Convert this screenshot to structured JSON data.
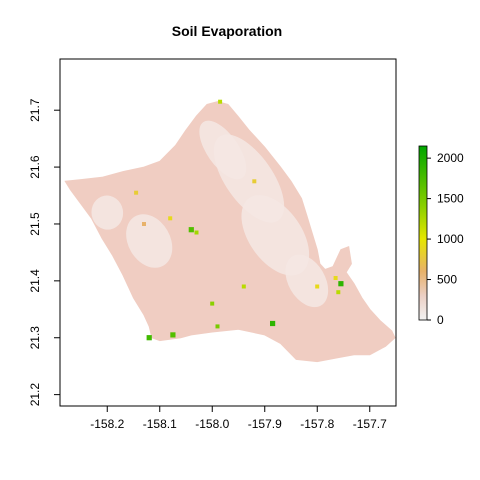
{
  "chart_data": {
    "type": "heatmap",
    "title": "Soil Evaporation",
    "xlabel": "",
    "ylabel": "",
    "xlim": [
      -158.29,
      -157.65
    ],
    "ylim": [
      21.18,
      21.79
    ],
    "x_ticks": [
      -158.2,
      -158.1,
      -158.0,
      -157.9,
      -157.8,
      -157.7
    ],
    "x_tick_labels": [
      "-158.2",
      "-158.1",
      "-158.0",
      "-157.9",
      "-157.8",
      "-157.7"
    ],
    "y_ticks": [
      21.2,
      21.3,
      21.4,
      21.5,
      21.6,
      21.7
    ],
    "y_tick_labels": [
      "21.2",
      "21.3",
      "21.4",
      "21.5",
      "21.6",
      "21.7"
    ],
    "legend": {
      "placement": "right",
      "min": 0,
      "max": 2150,
      "ticks": [
        0,
        500,
        1000,
        1500,
        2000
      ],
      "tick_labels": [
        "0",
        "500",
        "1000",
        "1500",
        "2000"
      ],
      "color_stops": [
        {
          "value": 0,
          "color": "#f2f2f2"
        },
        {
          "value": 300,
          "color": "#ebcfc4"
        },
        {
          "value": 600,
          "color": "#e8b26a"
        },
        {
          "value": 1000,
          "color": "#e6e600"
        },
        {
          "value": 1400,
          "color": "#8bd000"
        },
        {
          "value": 2150,
          "color": "#00a600"
        }
      ]
    },
    "region": {
      "name": "Oahu",
      "base_color": "#f0cdc2",
      "light_color": "#f5e8e4",
      "outline_lonlat": [
        [
          -158.28,
          21.575
        ],
        [
          -158.25,
          21.578
        ],
        [
          -158.21,
          21.582
        ],
        [
          -158.17,
          21.592
        ],
        [
          -158.13,
          21.6
        ],
        [
          -158.1,
          21.61
        ],
        [
          -158.07,
          21.638
        ],
        [
          -158.05,
          21.665
        ],
        [
          -158.03,
          21.69
        ],
        [
          -158.01,
          21.71
        ],
        [
          -157.99,
          21.715
        ],
        [
          -157.97,
          21.71
        ],
        [
          -157.95,
          21.688
        ],
        [
          -157.93,
          21.665
        ],
        [
          -157.9,
          21.635
        ],
        [
          -157.87,
          21.6
        ],
        [
          -157.85,
          21.575
        ],
        [
          -157.83,
          21.545
        ],
        [
          -157.82,
          21.515
        ],
        [
          -157.81,
          21.485
        ],
        [
          -157.8,
          21.455
        ],
        [
          -157.795,
          21.43
        ],
        [
          -157.785,
          21.42
        ],
        [
          -157.77,
          21.425
        ],
        [
          -157.755,
          21.455
        ],
        [
          -157.74,
          21.46
        ],
        [
          -157.735,
          21.43
        ],
        [
          -157.745,
          21.415
        ],
        [
          -157.73,
          21.395
        ],
        [
          -157.715,
          21.37
        ],
        [
          -157.7,
          21.35
        ],
        [
          -157.68,
          21.33
        ],
        [
          -157.658,
          21.312
        ],
        [
          -157.652,
          21.3
        ],
        [
          -157.67,
          21.285
        ],
        [
          -157.7,
          21.27
        ],
        [
          -157.73,
          21.27
        ],
        [
          -157.76,
          21.265
        ],
        [
          -157.8,
          21.258
        ],
        [
          -157.84,
          21.262
        ],
        [
          -157.87,
          21.29
        ],
        [
          -157.9,
          21.305
        ],
        [
          -157.95,
          21.315
        ],
        [
          -158.0,
          21.31
        ],
        [
          -158.04,
          21.305
        ],
        [
          -158.06,
          21.3
        ],
        [
          -158.1,
          21.295
        ],
        [
          -158.115,
          21.3
        ],
        [
          -158.12,
          21.32
        ],
        [
          -158.13,
          21.34
        ],
        [
          -158.15,
          21.37
        ],
        [
          -158.17,
          21.41
        ],
        [
          -158.19,
          21.445
        ],
        [
          -158.21,
          21.475
        ],
        [
          -158.23,
          21.51
        ],
        [
          -158.25,
          21.535
        ],
        [
          -158.27,
          21.56
        ]
      ],
      "high_value_spots": [
        {
          "lon": -157.755,
          "lat": 21.395,
          "value": 1900
        },
        {
          "lon": -157.76,
          "lat": 21.38,
          "value": 1200
        },
        {
          "lon": -157.765,
          "lat": 21.405,
          "value": 900
        },
        {
          "lon": -158.04,
          "lat": 21.49,
          "value": 1700
        },
        {
          "lon": -158.03,
          "lat": 21.485,
          "value": 1300
        },
        {
          "lon": -158.12,
          "lat": 21.3,
          "value": 1800
        },
        {
          "lon": -158.075,
          "lat": 21.305,
          "value": 1700
        },
        {
          "lon": -157.99,
          "lat": 21.32,
          "value": 1500
        },
        {
          "lon": -157.885,
          "lat": 21.325,
          "value": 1900
        },
        {
          "lon": -157.94,
          "lat": 21.39,
          "value": 1200
        },
        {
          "lon": -158.0,
          "lat": 21.36,
          "value": 1400
        },
        {
          "lon": -157.92,
          "lat": 21.575,
          "value": 800
        },
        {
          "lon": -157.985,
          "lat": 21.715,
          "value": 1200
        },
        {
          "lon": -158.08,
          "lat": 21.51,
          "value": 900
        },
        {
          "lon": -158.145,
          "lat": 21.555,
          "value": 800
        },
        {
          "lon": -158.13,
          "lat": 21.5,
          "value": 600
        },
        {
          "lon": -157.8,
          "lat": 21.39,
          "value": 900
        }
      ]
    }
  }
}
